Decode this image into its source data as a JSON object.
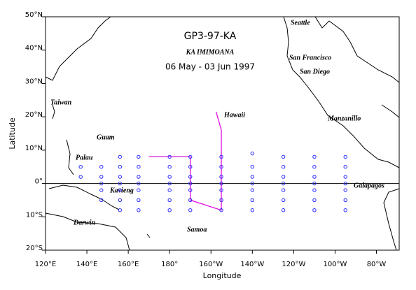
{
  "chart_data": {
    "type": "map",
    "title": "GP3-97-KA",
    "subtitle": "KA IMIMOANA",
    "date_range": "06 May - 03 Jun 1997",
    "x_label": "Longitude",
    "y_label": "Latitude",
    "xlim": [
      120,
      291
    ],
    "ylim": [
      -20,
      50
    ],
    "xticks": [
      {
        "value": 120,
        "label": "120°E"
      },
      {
        "value": 140,
        "label": "140°E"
      },
      {
        "value": 160,
        "label": "160°E"
      },
      {
        "value": 180,
        "label": "180°"
      },
      {
        "value": 200,
        "label": "160°W"
      },
      {
        "value": 220,
        "label": "140°W"
      },
      {
        "value": 240,
        "label": "120°W"
      },
      {
        "value": 260,
        "label": "100°W"
      },
      {
        "value": 280,
        "label": "80°W"
      }
    ],
    "yticks": [
      {
        "value": 50,
        "label": "50°N"
      },
      {
        "value": 40,
        "label": "40°N"
      },
      {
        "value": 30,
        "label": "30°N"
      },
      {
        "value": 20,
        "label": "20°N"
      },
      {
        "value": 10,
        "label": "10°N"
      },
      {
        "value": 0,
        "label": "0°"
      },
      {
        "value": -10,
        "label": "10°S"
      },
      {
        "value": -20,
        "label": "20°S"
      }
    ],
    "stations": {
      "color": "#2a2aff",
      "x": [
        137,
        137,
        147,
        147,
        147,
        147,
        147,
        156,
        156,
        156,
        156,
        156,
        156,
        156,
        165,
        165,
        165,
        165,
        165,
        165,
        165,
        180,
        180,
        180,
        180,
        180,
        180,
        180,
        190,
        190,
        190,
        190,
        190,
        190,
        190,
        205,
        205,
        205,
        205,
        205,
        205,
        205,
        220,
        220,
        220,
        220,
        220,
        220,
        220,
        235,
        235,
        235,
        235,
        235,
        235,
        235,
        250,
        250,
        250,
        250,
        250,
        250,
        250,
        265,
        265,
        265,
        265,
        265,
        265,
        265
      ],
      "y": [
        5,
        2,
        5,
        2,
        0,
        -2,
        -5,
        8,
        5,
        2,
        0,
        -2,
        -5,
        -8,
        8,
        5,
        2,
        0,
        -2,
        -5,
        -8,
        8,
        5,
        2,
        0,
        -2,
        -5,
        -8,
        8,
        5,
        2,
        0,
        -2,
        -5,
        -8,
        8,
        5,
        2,
        0,
        -2,
        -5,
        -8,
        9,
        5,
        2,
        0,
        -2,
        -5,
        -8,
        8,
        5,
        2,
        0,
        -2,
        -5,
        -8,
        8,
        5,
        2,
        0,
        -2,
        -5,
        -8,
        8,
        5,
        2,
        0,
        -2,
        -5,
        -8
      ]
    },
    "track": {
      "color": "#e010e0",
      "x": [
        170,
        190,
        190,
        205,
        205,
        205,
        202.5
      ],
      "y": [
        8,
        8,
        -5,
        -8,
        8,
        16,
        21.5
      ]
    },
    "places": [
      "Seattle",
      "San Francisco",
      "San Diego",
      "Hawaii",
      "Manzanillo",
      "Galapagos",
      "Taiwan",
      "Guam",
      "Palau",
      "Kavieng",
      "Darwin",
      "Samoa"
    ]
  }
}
